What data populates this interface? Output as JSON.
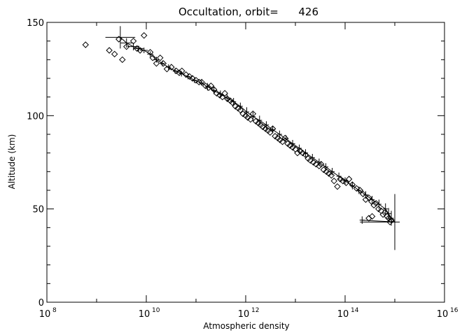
{
  "chart_data": {
    "type": "scatter",
    "title": "Occultation, orbit=      426",
    "xlabel": "Atmospheric density",
    "ylabel": "Altitude (km)",
    "x_scale": "log",
    "xlim": [
      100000000.0,
      1e+16
    ],
    "ylim": [
      0,
      150
    ],
    "x_ticks": [
      {
        "base": "10",
        "exp": "8",
        "value": 100000000.0
      },
      {
        "base": "10",
        "exp": "10",
        "value": 10000000000.0
      },
      {
        "base": "10",
        "exp": "12",
        "value": 1000000000000.0
      },
      {
        "base": "10",
        "exp": "14",
        "value": 100000000000000.0
      },
      {
        "base": "10",
        "exp": "16",
        "value": 1e+16
      }
    ],
    "y_ticks": [
      0,
      50,
      100,
      150
    ],
    "grid": false,
    "series": [
      {
        "kind": "scatter",
        "marker": "diamond",
        "points": [
          [
            600000000.0,
            138
          ],
          [
            1800000000.0,
            135
          ],
          [
            2300000000.0,
            133
          ],
          [
            2800000000.0,
            141
          ],
          [
            3300000000.0,
            130
          ],
          [
            4000000000.0,
            137
          ],
          [
            5500000000.0,
            140
          ],
          [
            6500000000.0,
            136
          ],
          [
            7500000000.0,
            135
          ],
          [
            9000000000.0,
            143
          ],
          [
            12000000000.0,
            134
          ],
          [
            13500000000.0,
            131
          ],
          [
            16000000000.0,
            128
          ],
          [
            19000000000.0,
            131
          ],
          [
            22000000000.0,
            128
          ],
          [
            26000000000.0,
            125
          ],
          [
            32000000000.0,
            126
          ],
          [
            40000000000.0,
            124
          ],
          [
            46000000000.0,
            123
          ],
          [
            52000000000.0,
            124
          ],
          [
            63000000000.0,
            122
          ],
          [
            74000000000.0,
            121
          ],
          [
            85000000000.0,
            120
          ],
          [
            100000000000.0,
            119
          ],
          [
            115000000000.0,
            118
          ],
          [
            130000000000.0,
            118
          ],
          [
            155000000000.0,
            116
          ],
          [
            180000000000.0,
            115
          ],
          [
            200000000000.0,
            116
          ],
          [
            230000000000.0,
            114
          ],
          [
            260000000000.0,
            112
          ],
          [
            300000000000.0,
            111
          ],
          [
            340000000000.0,
            110
          ],
          [
            380000000000.0,
            112
          ],
          [
            430000000000.0,
            109
          ],
          [
            490000000000.0,
            108
          ],
          [
            540000000000.0,
            107
          ],
          [
            620000000000.0,
            105
          ],
          [
            700000000000.0,
            104
          ],
          [
            780000000000.0,
            103
          ],
          [
            880000000000.0,
            101
          ],
          [
            1000000000000.0,
            100
          ],
          [
            1100000000000.0,
            99
          ],
          [
            1250000000000.0,
            98
          ],
          [
            1400000000000.0,
            101
          ],
          [
            1600000000000.0,
            97
          ],
          [
            1800000000000.0,
            96
          ],
          [
            2000000000000.0,
            95
          ],
          [
            2200000000000.0,
            94
          ],
          [
            2500000000000.0,
            93
          ],
          [
            2800000000000.0,
            92
          ],
          [
            3100000000000.0,
            91
          ],
          [
            3500000000000.0,
            93
          ],
          [
            3900000000000.0,
            89
          ],
          [
            4400000000000.0,
            88
          ],
          [
            4900000000000.0,
            87
          ],
          [
            5500000000000.0,
            86
          ],
          [
            6200000000000.0,
            88
          ],
          [
            7000000000000.0,
            85
          ],
          [
            7800000000000.0,
            84
          ],
          [
            8800000000000.0,
            83
          ],
          [
            10000000000000.0,
            82
          ],
          [
            11000000000000.0,
            80
          ],
          [
            12500000000000.0,
            81
          ],
          [
            14000000000000.0,
            80
          ],
          [
            16000000000000.0,
            79
          ],
          [
            18000000000000.0,
            77
          ],
          [
            20000000000000.0,
            76
          ],
          [
            23000000000000.0,
            75
          ],
          [
            26000000000000.0,
            74
          ],
          [
            30000000000000.0,
            73
          ],
          [
            33000000000000.0,
            74
          ],
          [
            37000000000000.0,
            71
          ],
          [
            42000000000000.0,
            70
          ],
          [
            47000000000000.0,
            69
          ],
          [
            53000000000000.0,
            68
          ],
          [
            60000000000000.0,
            65
          ],
          [
            70000000000000.0,
            62
          ],
          [
            80000000000000.0,
            66
          ],
          [
            90000000000000.0,
            65
          ],
          [
            105000000000000.0,
            64
          ],
          [
            120000000000000.0,
            66
          ],
          [
            140000000000000.0,
            63
          ],
          [
            170000000000000.0,
            61
          ],
          [
            200000000000000.0,
            60
          ],
          [
            230000000000000.0,
            58
          ],
          [
            260000000000000.0,
            55
          ],
          [
            300000000000000.0,
            56
          ],
          [
            340000000000000.0,
            54
          ],
          [
            380000000000000.0,
            52
          ],
          [
            420000000000000.0,
            53
          ],
          [
            470000000000000.0,
            50
          ],
          [
            530000000000000.0,
            49
          ],
          [
            580000000000000.0,
            47
          ],
          [
            630000000000000.0,
            48
          ],
          [
            700000000000000.0,
            46
          ],
          [
            750000000000000.0,
            45
          ],
          [
            800000000000000.0,
            43
          ],
          [
            850000000000000.0,
            44
          ],
          [
            300000000000000.0,
            45
          ],
          [
            350000000000000.0,
            46
          ]
        ]
      },
      {
        "kind": "errorbar-line",
        "points": [
          [
            3000000000.0,
            142
          ],
          [
            4000000000.0,
            139
          ],
          [
            5500000000.0,
            137
          ],
          [
            7000000000.0,
            136
          ],
          [
            9000000000.0,
            135
          ],
          [
            12000000000.0,
            133
          ],
          [
            16000000000.0,
            130
          ],
          [
            21000000000.0,
            128
          ],
          [
            28000000000.0,
            126
          ],
          [
            38000000000.0,
            124
          ],
          [
            51000000000.0,
            122.5
          ],
          [
            69000000000.0,
            121
          ],
          [
            93000000000.0,
            119
          ],
          [
            130000000000.0,
            117.5
          ],
          [
            170000000000.0,
            115.5
          ],
          [
            230000000000.0,
            113.5
          ],
          [
            310000000000.0,
            111.5
          ],
          [
            420000000000.0,
            109.5
          ],
          [
            570000000000.0,
            107.5
          ],
          [
            780000000000.0,
            105
          ],
          [
            1050000000000.0,
            102
          ],
          [
            1400000000000.0,
            99.5
          ],
          [
            1900000000000.0,
            97.5
          ],
          [
            2600000000000.0,
            95
          ],
          [
            3500000000000.0,
            92.5
          ],
          [
            4800000000000.0,
            90
          ],
          [
            6500000000000.0,
            87.5
          ],
          [
            8800000000000.0,
            85
          ],
          [
            12000000000000.0,
            82.5
          ],
          [
            16000000000000.0,
            80
          ],
          [
            22000000000000.0,
            77.5
          ],
          [
            30000000000000.0,
            75
          ],
          [
            41000000000000.0,
            72.5
          ],
          [
            55000000000000.0,
            70
          ],
          [
            75000000000000.0,
            67.5
          ],
          [
            100000000000000.0,
            65
          ],
          [
            140000000000000.0,
            62.5
          ],
          [
            190000000000000.0,
            60
          ],
          [
            260000000000000.0,
            57.5
          ],
          [
            350000000000000.0,
            55
          ],
          [
            480000000000000.0,
            52.5
          ],
          [
            650000000000000.0,
            50
          ],
          [
            750000000000000.0,
            47.5
          ],
          [
            850000000000000.0,
            45
          ],
          [
            1000000000000000.0,
            43
          ],
          [
            220000000000000.0,
            44
          ]
        ],
        "x_errors_decades": [
          [
            0.3,
            0.3
          ],
          [
            0.12,
            0.12
          ],
          [
            0.12,
            0.12
          ],
          [
            0.1,
            0.1
          ],
          [
            0.08,
            0.08
          ],
          [
            0.06,
            0.06
          ],
          [
            0.06,
            0.06
          ],
          [
            0.05,
            0.05
          ],
          [
            0.05,
            0.05
          ],
          [
            0.05,
            0.05
          ],
          [
            0.05,
            0.05
          ],
          [
            0.05,
            0.05
          ],
          [
            0.05,
            0.05
          ],
          [
            0.05,
            0.05
          ],
          [
            0.05,
            0.05
          ],
          [
            0.05,
            0.05
          ],
          [
            0.05,
            0.05
          ],
          [
            0.05,
            0.05
          ],
          [
            0.05,
            0.05
          ],
          [
            0.05,
            0.05
          ],
          [
            0.05,
            0.05
          ],
          [
            0.05,
            0.05
          ],
          [
            0.05,
            0.05
          ],
          [
            0.05,
            0.05
          ],
          [
            0.05,
            0.05
          ],
          [
            0.05,
            0.05
          ],
          [
            0.05,
            0.05
          ],
          [
            0.05,
            0.05
          ],
          [
            0.05,
            0.05
          ],
          [
            0.05,
            0.05
          ],
          [
            0.05,
            0.05
          ],
          [
            0.05,
            0.05
          ],
          [
            0.05,
            0.05
          ],
          [
            0.05,
            0.05
          ],
          [
            0.05,
            0.05
          ],
          [
            0.05,
            0.05
          ],
          [
            0.05,
            0.05
          ],
          [
            0.05,
            0.05
          ],
          [
            0.05,
            0.05
          ],
          [
            0.05,
            0.05
          ],
          [
            0.05,
            0.05
          ],
          [
            0.05,
            0.05
          ],
          [
            0.05,
            0.05
          ],
          [
            0.05,
            0.05
          ],
          [
            0.7,
            0.1
          ],
          [
            0.05,
            0.05
          ]
        ],
        "y_errors": [
          6,
          2.5,
          2,
          1.5,
          1.5,
          1.5,
          1.5,
          1.5,
          1.5,
          1.5,
          1.5,
          1.5,
          1.5,
          1.5,
          2,
          2,
          2,
          2,
          2,
          2,
          2.5,
          2.5,
          2.5,
          2,
          2,
          2,
          2,
          2,
          2,
          2,
          2,
          2,
          2,
          2,
          2,
          2,
          2,
          2,
          2,
          2,
          2.5,
          3,
          3,
          4,
          15,
          2
        ]
      }
    ]
  }
}
